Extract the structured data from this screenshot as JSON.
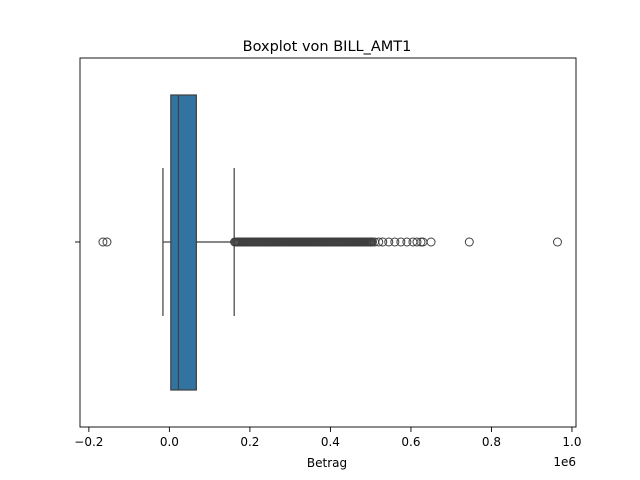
{
  "chart_data": {
    "type": "boxplot",
    "title": "Boxplot von BILL_AMT1",
    "xlabel": "Betrag",
    "ylabel": "",
    "offset_label": "1e6",
    "xlim": [
      -222000,
      1010000
    ],
    "x_ticks": [
      -0.2,
      0.0,
      0.2,
      0.4,
      0.6,
      0.8,
      1.0
    ],
    "x_tick_labels": [
      "−0.2",
      "0.0",
      "0.2",
      "0.4",
      "0.6",
      "0.8",
      "1.0"
    ],
    "tick_multiplier": 1000000,
    "box": {
      "whisker_low": -16000,
      "q1": 3500,
      "median": 22500,
      "q3": 67000,
      "whisker_high": 161000
    },
    "color": "#3274a1",
    "outliers_low": [
      -165000,
      -155000
    ],
    "outliers_high_dense_range": [
      162000,
      505000
    ],
    "outliers_high": [
      510000,
      520000,
      530000,
      545000,
      560000,
      575000,
      590000,
      605000,
      615000,
      625000,
      630000,
      650000,
      745000,
      964000
    ]
  }
}
